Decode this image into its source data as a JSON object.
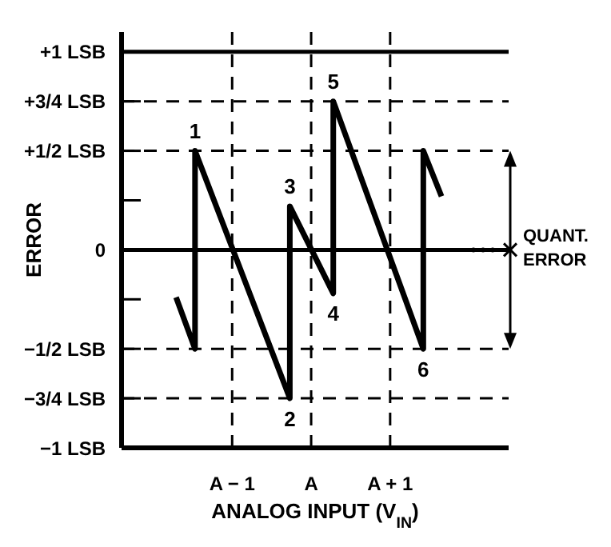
{
  "chart_data": {
    "type": "line",
    "xlabel": "ANALOG INPUT (V$_{IN}$)",
    "ylabel": "ERROR",
    "xlim": [
      -2.4,
      2.5
    ],
    "ylim": [
      -1,
      1.1
    ],
    "xticks": [
      {
        "value": -1,
        "label": "A − 1"
      },
      {
        "value": 0,
        "label": "A"
      },
      {
        "value": 1,
        "label": "A + 1"
      }
    ],
    "yticks": [
      {
        "value": 1,
        "label": "+1 LSB"
      },
      {
        "value": 0.75,
        "label": "+3/4 LSB"
      },
      {
        "value": 0.5,
        "label": "+1/2 LSB"
      },
      {
        "value": 0.25,
        "label": null
      },
      {
        "value": 0,
        "label": "0"
      },
      {
        "value": -0.25,
        "label": null
      },
      {
        "value": -0.5,
        "label": "−1/2 LSB"
      },
      {
        "value": -0.75,
        "label": "−3/4 LSB"
      },
      {
        "value": -1,
        "label": "−1 LSB"
      }
    ],
    "x": [
      -1.71,
      -1.47,
      -1.47,
      -0.27,
      -0.27,
      0.28,
      0.28,
      1.42,
      1.42,
      1.65
    ],
    "series": [
      {
        "color": "#000000",
        "values": [
          -0.24,
          -0.5,
          0.5,
          -0.75,
          0.22,
          -0.22,
          0.75,
          -0.5,
          0.5,
          0.27
        ]
      }
    ],
    "marker": "none",
    "line_style": "solid",
    "grid": "x",
    "ref_lines": [
      {
        "axis": "y",
        "value": 1,
        "line_style": "solid"
      },
      {
        "axis": "y",
        "value": 0.75,
        "line_style": "dashed"
      },
      {
        "axis": "y",
        "value": 0.5,
        "line_style": "dashed"
      },
      {
        "axis": "y",
        "value": 0,
        "line_style": "solid"
      },
      {
        "axis": "y",
        "value": -0.5,
        "line_style": "dashed"
      },
      {
        "axis": "y",
        "value": -0.75,
        "line_style": "dashed"
      }
    ],
    "annotations": [
      "QUANT. ERROR",
      {
        "text": "1",
        "x": -1.47,
        "y": 0.5
      },
      {
        "text": "2",
        "x": -0.27,
        "y": -0.75
      },
      {
        "text": "3",
        "x": -0.27,
        "y": 0.22
      },
      {
        "text": "4",
        "x": 0.28,
        "y": -0.22
      },
      {
        "text": "5",
        "x": 0.28,
        "y": 0.75
      },
      {
        "text": "6",
        "x": 1.42,
        "y": -0.5
      }
    ]
  }
}
